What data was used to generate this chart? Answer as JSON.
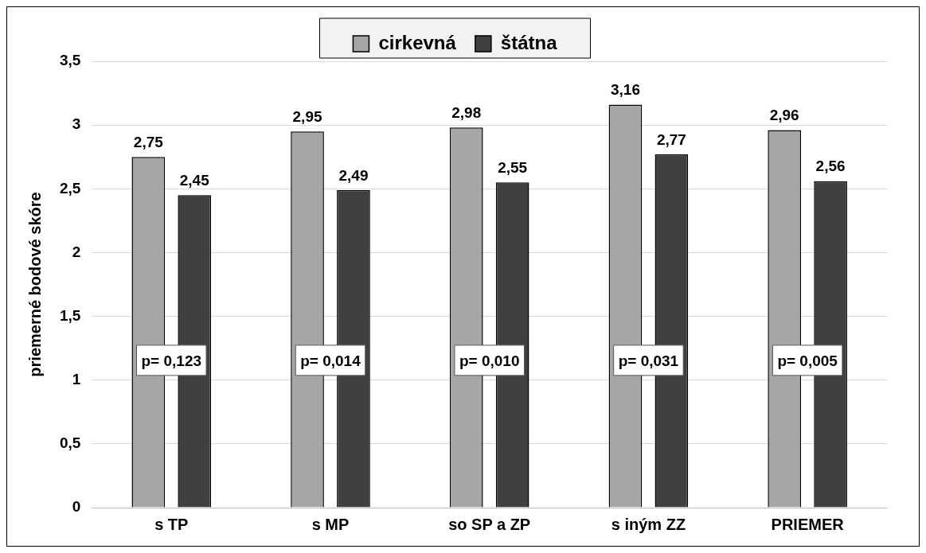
{
  "chart_data": {
    "type": "bar",
    "ylabel": "priemerné bodové skóre",
    "categories": [
      "s TP",
      "s MP",
      "so SP a ZP",
      "s iným ZZ",
      "PRIEMER"
    ],
    "series": [
      {
        "name": "cirkevná",
        "color": "#a6a6a6",
        "values": [
          2.75,
          2.95,
          2.98,
          3.16,
          2.96
        ],
        "value_labels": [
          "2,75",
          "2,95",
          "2,98",
          "3,16",
          "2,96"
        ]
      },
      {
        "name": "štátna",
        "color": "#404040",
        "values": [
          2.45,
          2.49,
          2.55,
          2.77,
          2.56
        ],
        "value_labels": [
          "2,45",
          "2,49",
          "2,55",
          "2,77",
          "2,56"
        ]
      }
    ],
    "ylim": [
      0,
      3.5
    ],
    "yticks": [
      0,
      {
        "value": 0.5,
        "label": "0,5"
      },
      1,
      {
        "value": 1.5,
        "label": "1,5"
      },
      2,
      {
        "value": 2.5,
        "label": "2,5"
      },
      3,
      {
        "value": 3.5,
        "label": "3,5"
      }
    ],
    "grid": "y",
    "legend": "top",
    "annotations": [
      "p= 0,123",
      "p= 0,014",
      "p= 0,010",
      "p= 0,031",
      "p= 0,005"
    ]
  }
}
